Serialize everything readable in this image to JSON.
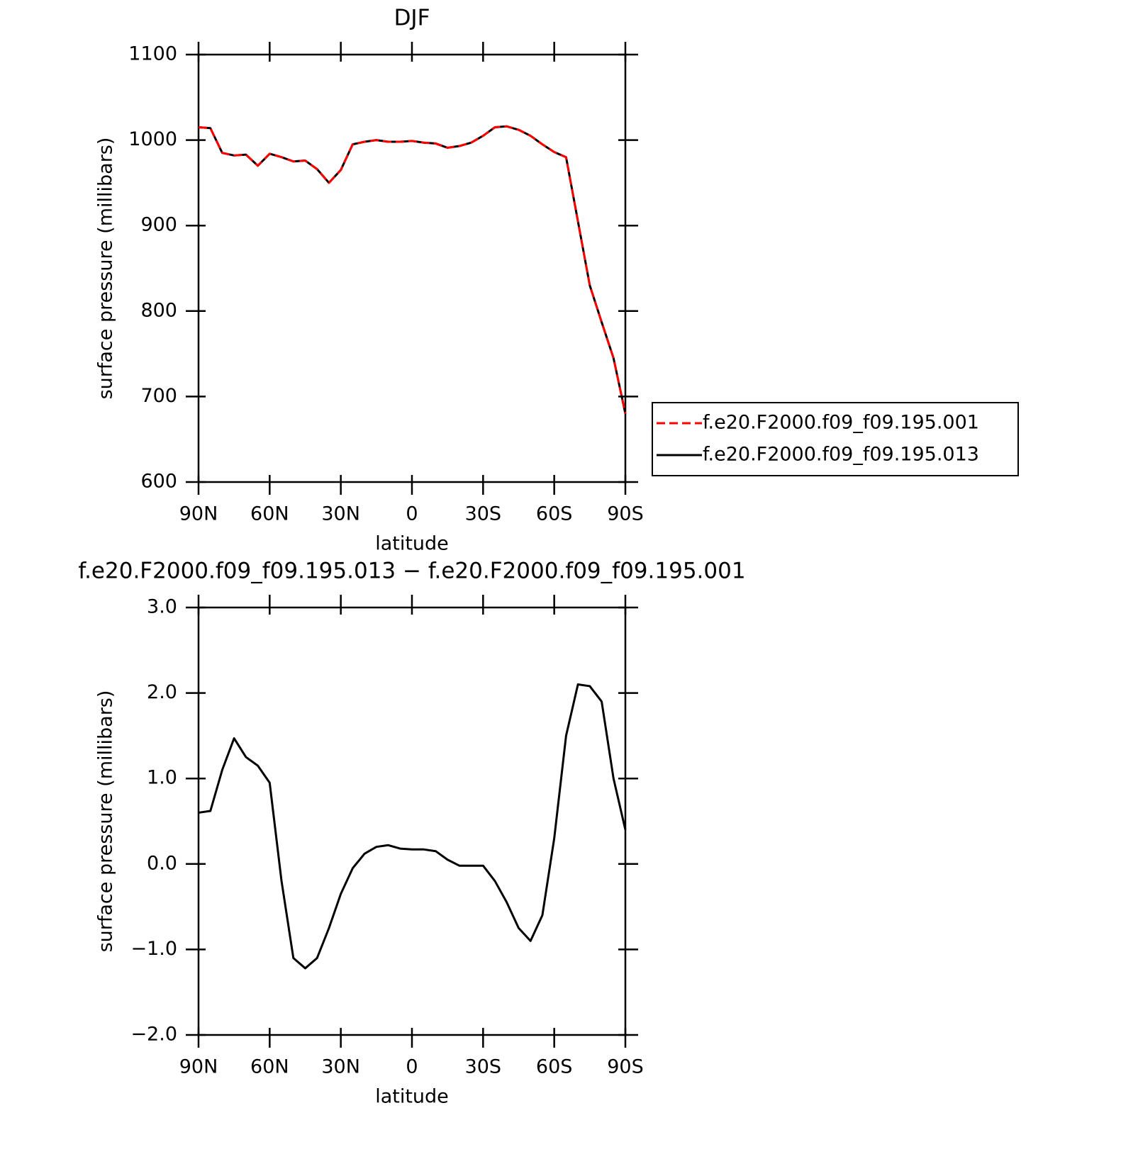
{
  "chart_data": [
    {
      "type": "line",
      "title": "DJF",
      "xlabel": "latitude",
      "ylabel": "surface pressure (millibars)",
      "x": [
        90,
        85,
        80,
        75,
        70,
        65,
        60,
        55,
        50,
        45,
        40,
        35,
        30,
        25,
        20,
        15,
        10,
        5,
        0,
        -5,
        -10,
        -15,
        -20,
        -25,
        -30,
        -35,
        -40,
        -45,
        -50,
        -55,
        -60,
        -65,
        -70,
        -75,
        -80,
        -85,
        -90
      ],
      "xlim": [
        90,
        -90
      ],
      "xticks": [
        {
          "value": 90,
          "label": "90N"
        },
        {
          "value": 60,
          "label": "60N"
        },
        {
          "value": 30,
          "label": "30N"
        },
        0,
        {
          "value": -30,
          "label": "30S"
        },
        {
          "value": -60,
          "label": "60S"
        },
        {
          "value": -90,
          "label": "90S"
        }
      ],
      "ylim": [
        600,
        1100
      ],
      "yticks": [
        600,
        700,
        800,
        900,
        1000,
        1100
      ],
      "legend": "right",
      "series": [
        {
          "name": "f.e20.F2000.f09_f09.195.001",
          "color": "#ff0000",
          "dash": true,
          "values": [
            1015,
            1014,
            985,
            982,
            983,
            970,
            984,
            980,
            975,
            976,
            966,
            950,
            965,
            995,
            998,
            1000,
            998,
            998,
            999,
            997,
            996,
            991,
            993,
            997,
            1005,
            1015,
            1016,
            1012,
            1005,
            995,
            986,
            980,
            905,
            830,
            787,
            745,
            680
          ]
        },
        {
          "name": "f.e20.F2000.f09_f09.195.013",
          "color": "#000000",
          "dash": false,
          "values": [
            1015,
            1014,
            985,
            982,
            983,
            970,
            984,
            980,
            975,
            976,
            966,
            950,
            965,
            995,
            998,
            1000,
            998,
            998,
            999,
            997,
            996,
            991,
            993,
            997,
            1005,
            1015,
            1016,
            1012,
            1005,
            995,
            986,
            980,
            905,
            830,
            787,
            745,
            680
          ]
        }
      ]
    },
    {
      "type": "line",
      "title": "f.e20.F2000.f09_f09.195.013 − f.e20.F2000.f09_f09.195.001",
      "xlabel": "latitude",
      "ylabel": "surface pressure (millibars)",
      "x": [
        90,
        85,
        80,
        75,
        70,
        65,
        60,
        55,
        50,
        45,
        40,
        35,
        30,
        25,
        20,
        15,
        10,
        5,
        0,
        -5,
        -10,
        -15,
        -20,
        -25,
        -30,
        -35,
        -40,
        -45,
        -50,
        -55,
        -60,
        -65,
        -70,
        -75,
        -80,
        -85,
        -90
      ],
      "xlim": [
        90,
        -90
      ],
      "xticks": [
        {
          "value": 90,
          "label": "90N"
        },
        {
          "value": 60,
          "label": "60N"
        },
        {
          "value": 30,
          "label": "30N"
        },
        0,
        {
          "value": -30,
          "label": "30S"
        },
        {
          "value": -60,
          "label": "60S"
        },
        {
          "value": -90,
          "label": "90S"
        }
      ],
      "ylim": [
        -2,
        3
      ],
      "yticks": [
        {
          "value": -2,
          "label": "−2.0"
        },
        {
          "value": -1,
          "label": "−1.0"
        },
        {
          "value": 0,
          "label": "0.0"
        },
        {
          "value": 1,
          "label": "1.0"
        },
        {
          "value": 2,
          "label": "2.0"
        },
        {
          "value": 3,
          "label": "3.0"
        }
      ],
      "series": [
        {
          "color": "#000000",
          "dash": false,
          "values": [
            0.6,
            0.62,
            1.1,
            1.47,
            1.25,
            1.15,
            0.95,
            -0.2,
            -1.1,
            -1.22,
            -1.1,
            -0.75,
            -0.35,
            -0.05,
            0.12,
            0.2,
            0.22,
            0.18,
            0.17,
            0.17,
            0.15,
            0.05,
            -0.02,
            -0.02,
            -0.02,
            -0.2,
            -0.45,
            -0.75,
            -0.9,
            -0.6,
            0.3,
            1.5,
            2.1,
            2.08,
            1.9,
            1.0,
            0.4
          ]
        }
      ]
    }
  ]
}
